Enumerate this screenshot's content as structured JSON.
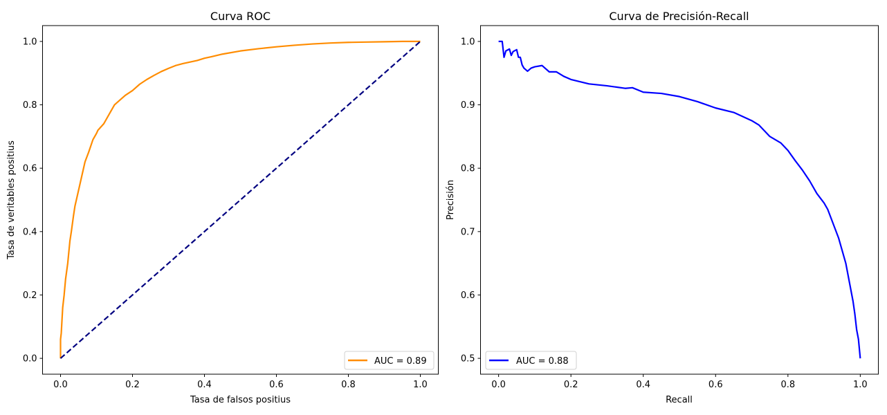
{
  "chart_data": [
    {
      "type": "line",
      "title": "Curva ROC",
      "xlabel": "Tasa de falsos positius",
      "ylabel": "Tasa de veritables positius",
      "xlim": [
        -0.05,
        1.05
      ],
      "ylim": [
        -0.05,
        1.05
      ],
      "xticks": [
        "0.0",
        "0.2",
        "0.4",
        "0.6",
        "0.8",
        "1.0"
      ],
      "yticks": [
        "0.0",
        "0.2",
        "0.4",
        "0.6",
        "0.8",
        "1.0"
      ],
      "grid": false,
      "legend_position": "lower right",
      "series": [
        {
          "name": "AUC = 0.89",
          "color": "#ff8c00",
          "style": "solid",
          "x": [
            0.0,
            0.0,
            0.002,
            0.004,
            0.006,
            0.01,
            0.014,
            0.02,
            0.026,
            0.03,
            0.036,
            0.04,
            0.044,
            0.048,
            0.054,
            0.06,
            0.068,
            0.078,
            0.09,
            0.1,
            0.104,
            0.12,
            0.13,
            0.14,
            0.15,
            0.16,
            0.18,
            0.2,
            0.22,
            0.24,
            0.26,
            0.28,
            0.3,
            0.32,
            0.34,
            0.36,
            0.38,
            0.4,
            0.42,
            0.45,
            0.5,
            0.55,
            0.6,
            0.65,
            0.7,
            0.75,
            0.8,
            0.85,
            0.9,
            0.95,
            1.0
          ],
          "y": [
            0.0,
            0.06,
            0.08,
            0.12,
            0.16,
            0.2,
            0.25,
            0.3,
            0.37,
            0.4,
            0.45,
            0.48,
            0.5,
            0.52,
            0.55,
            0.58,
            0.62,
            0.65,
            0.69,
            0.71,
            0.72,
            0.74,
            0.76,
            0.78,
            0.8,
            0.81,
            0.83,
            0.845,
            0.865,
            0.88,
            0.893,
            0.905,
            0.915,
            0.924,
            0.93,
            0.935,
            0.94,
            0.947,
            0.952,
            0.96,
            0.97,
            0.977,
            0.983,
            0.988,
            0.992,
            0.995,
            0.997,
            0.998,
            0.999,
            1.0,
            1.0
          ]
        },
        {
          "name": "",
          "color": "#000080",
          "style": "dashed",
          "x": [
            0,
            1
          ],
          "y": [
            0,
            1
          ]
        }
      ]
    },
    {
      "type": "line",
      "title": "Curva de Precisión-Recall",
      "xlabel": "Recall",
      "ylabel": "Precisión",
      "xlim": [
        -0.05,
        1.05
      ],
      "ylim": [
        0.475,
        1.025
      ],
      "xticks": [
        "0.0",
        "0.2",
        "0.4",
        "0.6",
        "0.8",
        "1.0"
      ],
      "yticks": [
        "0.5",
        "0.6",
        "0.7",
        "0.8",
        "0.9",
        "1.0"
      ],
      "grid": false,
      "legend_position": "lower left",
      "series": [
        {
          "name": "AUC = 0.88",
          "color": "#0000ff",
          "style": "solid",
          "x": [
            0.0,
            0.01,
            0.015,
            0.015,
            0.02,
            0.03,
            0.035,
            0.04,
            0.05,
            0.055,
            0.06,
            0.065,
            0.07,
            0.08,
            0.09,
            0.1,
            0.12,
            0.14,
            0.16,
            0.18,
            0.2,
            0.25,
            0.3,
            0.35,
            0.37,
            0.4,
            0.45,
            0.5,
            0.55,
            0.6,
            0.65,
            0.7,
            0.72,
            0.75,
            0.78,
            0.8,
            0.82,
            0.84,
            0.86,
            0.88,
            0.9,
            0.91,
            0.92,
            0.93,
            0.94,
            0.95,
            0.96,
            0.97,
            0.98,
            0.985,
            0.99,
            0.995,
            1.0,
            1.0
          ],
          "y": [
            1.0,
            1.0,
            0.975,
            0.975,
            0.985,
            0.988,
            0.978,
            0.984,
            0.987,
            0.975,
            0.975,
            0.963,
            0.958,
            0.953,
            0.958,
            0.96,
            0.962,
            0.952,
            0.952,
            0.945,
            0.94,
            0.933,
            0.93,
            0.926,
            0.927,
            0.92,
            0.918,
            0.913,
            0.905,
            0.895,
            0.888,
            0.875,
            0.868,
            0.85,
            0.84,
            0.828,
            0.812,
            0.797,
            0.78,
            0.76,
            0.745,
            0.735,
            0.72,
            0.705,
            0.69,
            0.67,
            0.65,
            0.62,
            0.59,
            0.57,
            0.545,
            0.53,
            0.5,
            0.5
          ]
        }
      ]
    }
  ]
}
